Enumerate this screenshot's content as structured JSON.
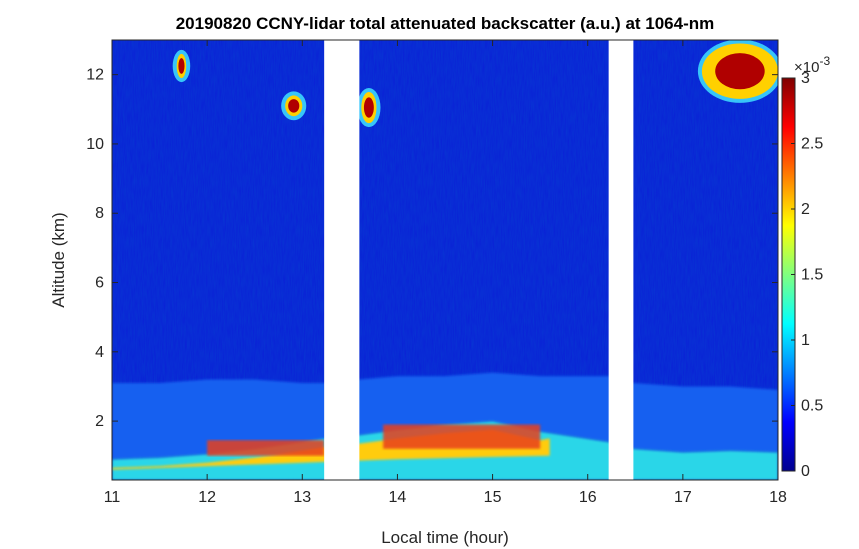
{
  "chart_data": {
    "type": "heatmap",
    "title": "20190820 CCNY-lidar total attenuated backscatter (a.u.) at 1064-nm",
    "xlabel": "Local time (hour)",
    "ylabel": "Altitude (km)",
    "xlim": [
      11,
      18
    ],
    "ylim": [
      0.3,
      13
    ],
    "xticks": [
      "11",
      "12",
      "13",
      "14",
      "15",
      "16",
      "17",
      "18"
    ],
    "yticks": [
      "2",
      "4",
      "6",
      "8",
      "10",
      "12"
    ],
    "colorbar": {
      "range": [
        0,
        0.003
      ],
      "ticks": [
        "0",
        "0.5",
        "1",
        "1.5",
        "2",
        "2.5",
        "3"
      ],
      "multiplier_base": "×10",
      "multiplier_exp": "-3",
      "colormap": "jet"
    },
    "data_gaps_hours": [
      [
        13.23,
        13.6
      ],
      [
        16.22,
        16.48
      ]
    ],
    "features": [
      {
        "label": "boundary layer top",
        "x": [
          11,
          11.5,
          12,
          12.5,
          13,
          13.23,
          13.6,
          14,
          14.5,
          15,
          15.5,
          16.22,
          16.48,
          17,
          17.5,
          18
        ],
        "y": [
          3.1,
          3.1,
          3.2,
          3.2,
          3.1,
          3.1,
          3.2,
          3.3,
          3.3,
          3.4,
          3.3,
          3.3,
          3.1,
          3.0,
          3.0,
          2.9
        ]
      },
      {
        "label": "near-surface aerosol layer",
        "x": [
          11,
          11.5,
          12,
          12.5,
          13,
          13.23,
          13.6,
          14,
          14.5,
          15,
          15.5,
          16.22,
          16.48,
          17,
          17.5,
          18
        ],
        "y": [
          0.9,
          0.95,
          1.05,
          1.2,
          1.4,
          1.5,
          1.6,
          1.75,
          1.9,
          2.0,
          1.7,
          1.4,
          1.2,
          1.1,
          1.15,
          1.1
        ]
      },
      {
        "label": "cloud",
        "x_range": [
          11.68,
          11.78
        ],
        "y_range": [
          11.9,
          12.6
        ]
      },
      {
        "label": "cloud",
        "x_range": [
          12.82,
          13.0
        ],
        "y_range": [
          10.8,
          11.4
        ]
      },
      {
        "label": "cloud",
        "x_range": [
          13.62,
          13.78
        ],
        "y_range": [
          10.6,
          11.5
        ]
      },
      {
        "label": "cloud",
        "x_range": [
          17.2,
          18.0
        ],
        "y_range": [
          11.3,
          12.9
        ]
      }
    ]
  }
}
